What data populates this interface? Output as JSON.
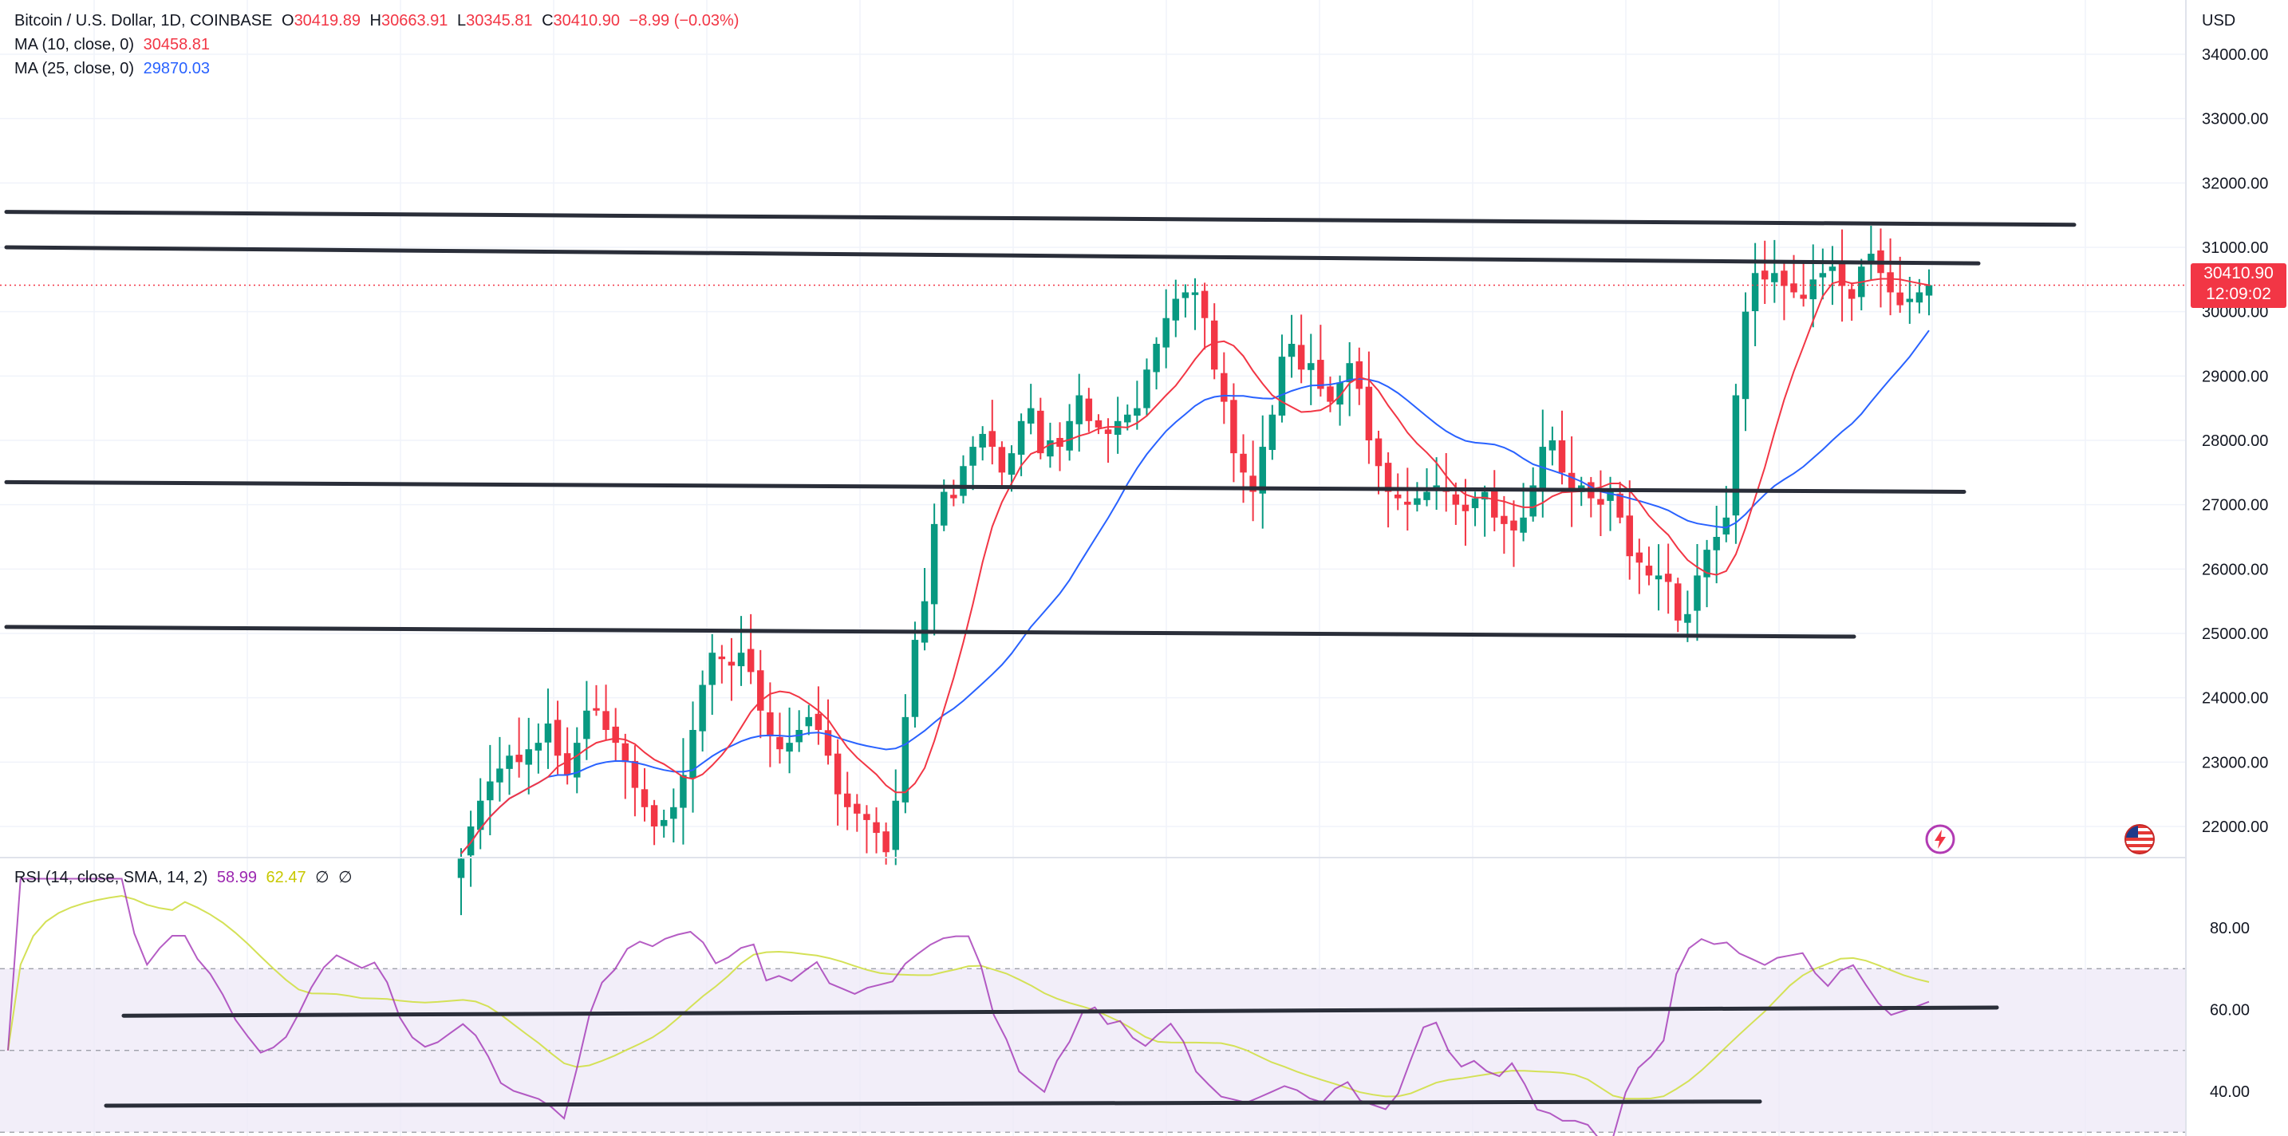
{
  "header": {
    "symbol": "Bitcoin / U.S. Dollar, 1D, COINBASE",
    "open_label": "O",
    "open": "30419.89",
    "high_label": "H",
    "high": "30663.91",
    "low_label": "L",
    "low": "30345.81",
    "close_label": "C",
    "close": "30410.90",
    "change": "−8.99 (−0.03%)"
  },
  "ma10": {
    "label": "MA (10, close, 0)",
    "value": "30458.81",
    "color": "#f23645"
  },
  "ma25": {
    "label": "MA (25, close, 0)",
    "value": "29870.03",
    "color": "#2962ff"
  },
  "rsi": {
    "label": "RSI (14, close, SMA, 14, 2)",
    "value": "58.99",
    "sma_value": "62.47",
    "extra1": "∅",
    "extra2": "∅",
    "color": "#9c27b0",
    "sma_color": "#d4e157"
  },
  "currency": "USD",
  "last_price": {
    "value": "30410.90",
    "countdown": "12:09:02"
  },
  "icons": {
    "lightning": "lightning-icon",
    "flag": "us-flag-icon"
  },
  "colors": {
    "up": "#089981",
    "down": "#f23645",
    "band": "#ede7f6"
  },
  "chart_data": {
    "type": "candlestick",
    "price_axis": {
      "ticks": [
        34000,
        33000,
        32000,
        31000,
        30000,
        29000,
        28000,
        27000,
        26000,
        25000,
        24000,
        23000,
        22000
      ],
      "tick_labels": [
        "34000.00",
        "33000.00",
        "32000.00",
        "31000.00",
        "30000.00",
        "29000.00",
        "28000.00",
        "27000.00",
        "26000.00",
        "25000.00",
        "24000.00",
        "23000.00",
        "22000.00"
      ]
    },
    "rsi_axis": {
      "ticks": [
        80,
        60,
        40
      ],
      "tick_labels": [
        "80.00",
        "60.00",
        "40.00"
      ],
      "band": [
        30,
        70
      ]
    },
    "closes": [
      21500,
      22000,
      22400,
      22700,
      22900,
      23100,
      23000,
      23200,
      23300,
      23600,
      23100,
      22800,
      23300,
      23800,
      23800,
      23500,
      23300,
      23000,
      22600,
      22300,
      22000,
      22100,
      22300,
      22800,
      23500,
      24200,
      24700,
      24600,
      24500,
      24700,
      24400,
      23800,
      23400,
      23200,
      23300,
      23500,
      23700,
      23500,
      23100,
      22500,
      22300,
      22200,
      22100,
      21900,
      21600,
      22400,
      23700,
      24900,
      25500,
      26700,
      27200,
      27100,
      27600,
      27900,
      28100,
      27900,
      27500,
      27800,
      28300,
      28500,
      27800,
      28000,
      27900,
      28300,
      28700,
      28300,
      28200,
      28100,
      28300,
      28400,
      28500,
      29100,
      29500,
      29900,
      30200,
      30300,
      30300,
      29900,
      29100,
      28600,
      27800,
      27500,
      27200,
      27900,
      28400,
      29300,
      29500,
      29100,
      29200,
      28800,
      28600,
      28900,
      29200,
      28800,
      28000,
      27600,
      27200,
      27100,
      27000,
      27100,
      27200,
      27300,
      27200,
      27000,
      26900,
      27100,
      27200,
      26800,
      26700,
      26600,
      26800,
      27300,
      27900,
      28000,
      27500,
      27200,
      27300,
      27100,
      27000,
      27200,
      26800,
      26200,
      26100,
      25900,
      25900,
      25800,
      25200,
      25300,
      25900,
      26300,
      26500,
      26800,
      28700,
      30000,
      30600,
      30500,
      30600,
      30400,
      30300,
      30200,
      30500,
      30600,
      30700,
      30400,
      30200,
      30700,
      30900,
      30600,
      30300,
      30100,
      30200,
      30300,
      30410.9
    ],
    "ma10_last": 30458.81,
    "ma25_last": 29870.03,
    "rsi_last": 58.99,
    "rsi_sma_last": 62.47,
    "annotations": [
      {
        "type": "trendline",
        "pane": "price",
        "from": 31550,
        "to": 31350
      },
      {
        "type": "trendline",
        "pane": "price",
        "from": 31000,
        "to": 30750
      },
      {
        "type": "trendline",
        "pane": "price",
        "from": 27350,
        "to": 27200
      },
      {
        "type": "trendline",
        "pane": "price",
        "from": 25100,
        "to": 24950
      },
      {
        "type": "trendline",
        "pane": "rsi",
        "from": 58.5,
        "to": 60.5
      },
      {
        "type": "trendline",
        "pane": "rsi",
        "from": 36.5,
        "to": 37.5
      }
    ]
  }
}
